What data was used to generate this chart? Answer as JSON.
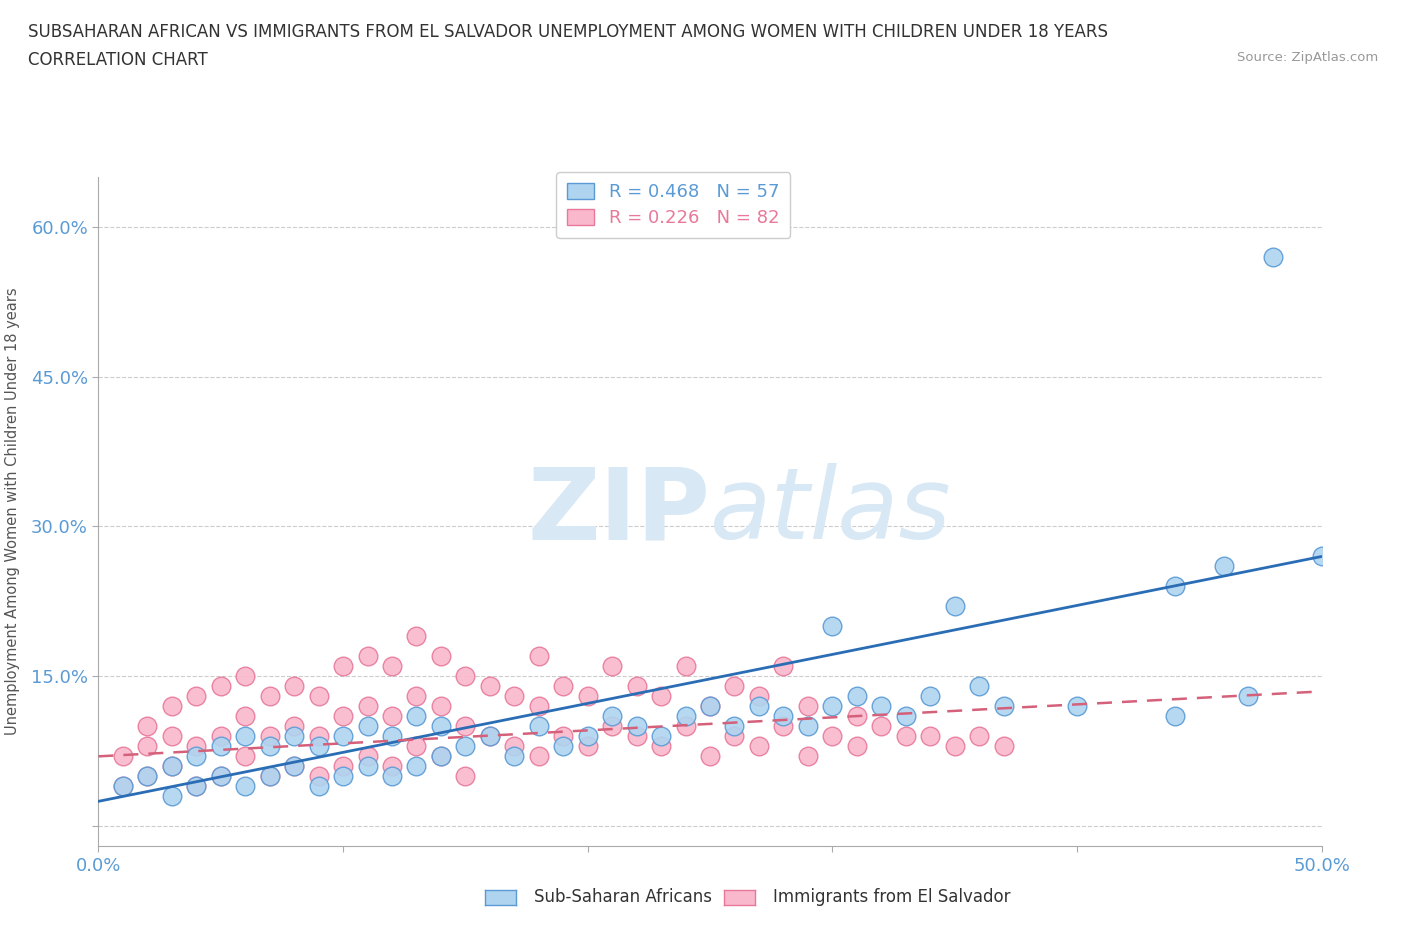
{
  "title_line1": "SUBSAHARAN AFRICAN VS IMMIGRANTS FROM EL SALVADOR UNEMPLOYMENT AMONG WOMEN WITH CHILDREN UNDER 18 YEARS",
  "title_line2": "CORRELATION CHART",
  "source": "Source: ZipAtlas.com",
  "ylabel": "Unemployment Among Women with Children Under 18 years",
  "xlim": [
    0.0,
    0.5
  ],
  "ylim": [
    -0.02,
    0.65
  ],
  "blue_color": "#aed4f0",
  "pink_color": "#f9b8cc",
  "blue_edge_color": "#5b9bd5",
  "pink_edge_color": "#e8799a",
  "blue_line_color": "#2a6db5",
  "pink_line_color": "#d4607a",
  "grid_color": "#cccccc",
  "watermark_color": "#d8e8f5",
  "tick_color": "#5b9bd5",
  "legend_r_blue": "R = 0.468",
  "legend_n_blue": "N = 57",
  "legend_r_pink": "R = 0.226",
  "legend_n_pink": "N = 82",
  "legend_label_blue": "Sub-Saharan Africans",
  "legend_label_pink": "Immigrants from El Salvador",
  "blue_scatter_x": [
    0.01,
    0.02,
    0.03,
    0.03,
    0.04,
    0.04,
    0.05,
    0.05,
    0.06,
    0.06,
    0.07,
    0.07,
    0.08,
    0.08,
    0.09,
    0.09,
    0.1,
    0.1,
    0.11,
    0.11,
    0.12,
    0.12,
    0.13,
    0.13,
    0.14,
    0.14,
    0.15,
    0.16,
    0.17,
    0.18,
    0.19,
    0.2,
    0.21,
    0.22,
    0.23,
    0.24,
    0.25,
    0.26,
    0.27,
    0.28,
    0.29,
    0.3,
    0.3,
    0.31,
    0.32,
    0.33,
    0.34,
    0.35,
    0.36,
    0.37,
    0.4,
    0.44,
    0.44,
    0.46,
    0.47,
    0.48,
    0.5
  ],
  "blue_scatter_y": [
    0.04,
    0.05,
    0.03,
    0.06,
    0.04,
    0.07,
    0.05,
    0.08,
    0.04,
    0.09,
    0.05,
    0.08,
    0.06,
    0.09,
    0.04,
    0.08,
    0.05,
    0.09,
    0.06,
    0.1,
    0.05,
    0.09,
    0.06,
    0.11,
    0.07,
    0.1,
    0.08,
    0.09,
    0.07,
    0.1,
    0.08,
    0.09,
    0.11,
    0.1,
    0.09,
    0.11,
    0.12,
    0.1,
    0.12,
    0.11,
    0.1,
    0.2,
    0.12,
    0.13,
    0.12,
    0.11,
    0.13,
    0.22,
    0.14,
    0.12,
    0.12,
    0.24,
    0.11,
    0.26,
    0.13,
    0.57,
    0.27
  ],
  "pink_scatter_x": [
    0.01,
    0.01,
    0.02,
    0.02,
    0.02,
    0.03,
    0.03,
    0.03,
    0.04,
    0.04,
    0.04,
    0.05,
    0.05,
    0.05,
    0.06,
    0.06,
    0.06,
    0.07,
    0.07,
    0.07,
    0.08,
    0.08,
    0.08,
    0.09,
    0.09,
    0.09,
    0.1,
    0.1,
    0.1,
    0.11,
    0.11,
    0.11,
    0.12,
    0.12,
    0.12,
    0.13,
    0.13,
    0.13,
    0.14,
    0.14,
    0.14,
    0.15,
    0.15,
    0.15,
    0.16,
    0.16,
    0.17,
    0.17,
    0.18,
    0.18,
    0.18,
    0.19,
    0.19,
    0.2,
    0.2,
    0.21,
    0.21,
    0.22,
    0.22,
    0.23,
    0.23,
    0.24,
    0.24,
    0.25,
    0.25,
    0.26,
    0.26,
    0.27,
    0.27,
    0.28,
    0.28,
    0.29,
    0.29,
    0.3,
    0.31,
    0.31,
    0.32,
    0.33,
    0.34,
    0.35,
    0.36,
    0.37
  ],
  "pink_scatter_y": [
    0.04,
    0.07,
    0.05,
    0.08,
    0.1,
    0.06,
    0.09,
    0.12,
    0.04,
    0.08,
    0.13,
    0.05,
    0.09,
    0.14,
    0.07,
    0.11,
    0.15,
    0.05,
    0.09,
    0.13,
    0.06,
    0.1,
    0.14,
    0.05,
    0.09,
    0.13,
    0.06,
    0.11,
    0.16,
    0.07,
    0.12,
    0.17,
    0.06,
    0.11,
    0.16,
    0.08,
    0.13,
    0.19,
    0.07,
    0.12,
    0.17,
    0.05,
    0.1,
    0.15,
    0.09,
    0.14,
    0.08,
    0.13,
    0.07,
    0.12,
    0.17,
    0.09,
    0.14,
    0.08,
    0.13,
    0.1,
    0.16,
    0.09,
    0.14,
    0.08,
    0.13,
    0.1,
    0.16,
    0.07,
    0.12,
    0.09,
    0.14,
    0.08,
    0.13,
    0.1,
    0.16,
    0.07,
    0.12,
    0.09,
    0.11,
    0.08,
    0.1,
    0.09,
    0.09,
    0.08,
    0.09,
    0.08
  ],
  "blue_trend_x": [
    0.0,
    0.5
  ],
  "blue_trend_y": [
    0.025,
    0.27
  ],
  "pink_trend_x": [
    0.0,
    0.5
  ],
  "pink_trend_y": [
    0.07,
    0.135
  ],
  "background_color": "#ffffff"
}
